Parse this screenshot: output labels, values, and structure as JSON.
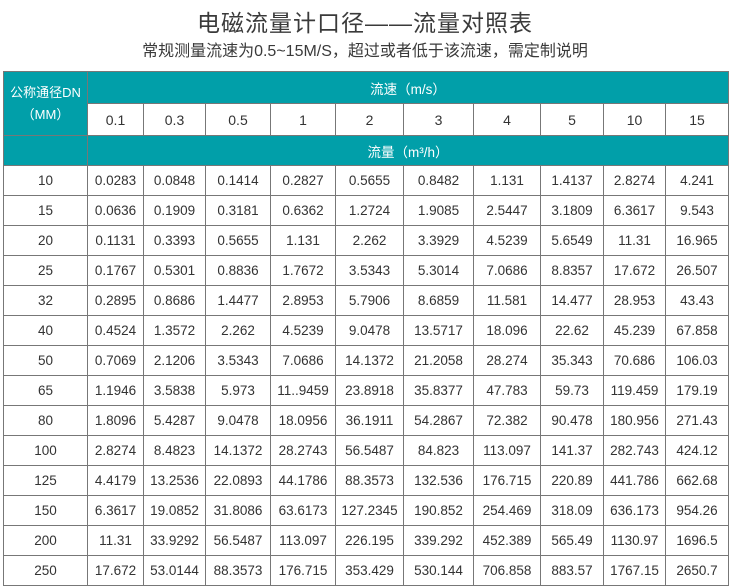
{
  "title": "电磁流量计口径——流量对照表",
  "subtitle": "常规测量流速为0.5~15M/S，超过或者低于该流速，需定制说明",
  "colors": {
    "header_bg": "#019fa9",
    "header_text": "#ffffff"
  },
  "table": {
    "dn_header_line1": "公称通径DN",
    "dn_header_line2": "（MM）",
    "velocity_header": "流速（m/s）",
    "flow_header": "流量（m³/h）",
    "velocities": [
      "0.1",
      "0.3",
      "0.5",
      "1",
      "2",
      "3",
      "4",
      "5",
      "10",
      "15"
    ],
    "rows": [
      {
        "dn": "10",
        "values": [
          "0.0283",
          "0.0848",
          "0.1414",
          "0.2827",
          "0.5655",
          "0.8482",
          "1.131",
          "1.4137",
          "2.8274",
          "4.241"
        ]
      },
      {
        "dn": "15",
        "values": [
          "0.0636",
          "0.1909",
          "0.3181",
          "0.6362",
          "1.2724",
          "1.9085",
          "2.5447",
          "3.1809",
          "6.3617",
          "9.543"
        ]
      },
      {
        "dn": "20",
        "values": [
          "0.1131",
          "0.3393",
          "0.5655",
          "1.131",
          "2.262",
          "3.3929",
          "4.5239",
          "5.6549",
          "11.31",
          "16.965"
        ]
      },
      {
        "dn": "25",
        "values": [
          "0.1767",
          "0.5301",
          "0.8836",
          "1.7672",
          "3.5343",
          "5.3014",
          "7.0686",
          "8.8357",
          "17.672",
          "26.507"
        ]
      },
      {
        "dn": "32",
        "values": [
          "0.2895",
          "0.8686",
          "1.4477",
          "2.8953",
          "5.7906",
          "8.6859",
          "11.581",
          "14.477",
          "28.953",
          "43.43"
        ]
      },
      {
        "dn": "40",
        "values": [
          "0.4524",
          "1.3572",
          "2.262",
          "4.5239",
          "9.0478",
          "13.5717",
          "18.096",
          "22.62",
          "45.239",
          "67.858"
        ]
      },
      {
        "dn": "50",
        "values": [
          "0.7069",
          "2.1206",
          "3.5343",
          "7.0686",
          "14.1372",
          "21.2058",
          "28.274",
          "35.343",
          "70.686",
          "106.03"
        ]
      },
      {
        "dn": "65",
        "values": [
          "1.1946",
          "3.5838",
          "5.973",
          "11..9459",
          "23.8918",
          "35.8377",
          "47.783",
          "59.73",
          "119.459",
          "179.19"
        ]
      },
      {
        "dn": "80",
        "values": [
          "1.8096",
          "5.4287",
          "9.0478",
          "18.0956",
          "36.1911",
          "54.2867",
          "72.382",
          "90.478",
          "180.956",
          "271.43"
        ]
      },
      {
        "dn": "100",
        "values": [
          "2.8274",
          "8.4823",
          "14.1372",
          "28.2743",
          "56.5487",
          "84.823",
          "113.097",
          "141.37",
          "282.743",
          "424.12"
        ]
      },
      {
        "dn": "125",
        "values": [
          "4.4179",
          "13.2536",
          "22.0893",
          "44.1786",
          "88.3573",
          "132.536",
          "176.715",
          "220.89",
          "441.786",
          "662.68"
        ]
      },
      {
        "dn": "150",
        "values": [
          "6.3617",
          "19.0852",
          "31.8086",
          "63.6173",
          "127.2345",
          "190.852",
          "254.469",
          "318.09",
          "636.173",
          "954.26"
        ]
      },
      {
        "dn": "200",
        "values": [
          "11.31",
          "33.9292",
          "56.5487",
          "113.097",
          "226.195",
          "339.292",
          "452.389",
          "565.49",
          "1130.97",
          "1696.5"
        ]
      },
      {
        "dn": "250",
        "values": [
          "17.672",
          "53.0144",
          "88.3573",
          "176.715",
          "353.429",
          "530.144",
          "706.858",
          "883.57",
          "1767.15",
          "2650.7"
        ]
      }
    ]
  }
}
